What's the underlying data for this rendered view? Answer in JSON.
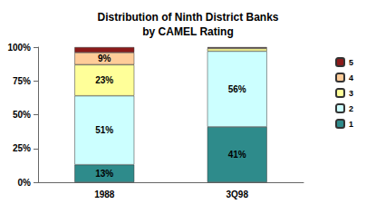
{
  "chart_data": {
    "type": "bar",
    "title": "Distribution of Ninth District Banks\nby CAMEL Rating",
    "categories": [
      "1988",
      "3Q98"
    ],
    "stacked": true,
    "data_labels": true,
    "grid": false,
    "legend": "right",
    "ylim": [
      0,
      100
    ],
    "yticks": [
      {
        "value": 0,
        "label": "0%"
      },
      {
        "value": 25,
        "label": "25%"
      },
      {
        "value": 50,
        "label": "50%"
      },
      {
        "value": 75,
        "label": "75%"
      },
      {
        "value": 100,
        "label": "100%"
      }
    ],
    "series": [
      {
        "name": "1",
        "color": "#2e8b8b",
        "values": [
          13,
          41
        ],
        "value_labels": [
          "13%",
          "41%"
        ]
      },
      {
        "name": "2",
        "color": "#ccffff",
        "values": [
          51,
          56
        ],
        "value_labels": [
          "51%",
          "56%"
        ]
      },
      {
        "name": "3",
        "color": "#ffff99",
        "values": [
          23,
          2
        ],
        "value_labels": [
          "23%",
          null
        ]
      },
      {
        "name": "4",
        "color": "#ffcc99",
        "values": [
          9,
          0.5
        ],
        "value_labels": [
          "9%",
          null
        ]
      },
      {
        "name": "5",
        "color": "#8b1a1a",
        "values": [
          4,
          0.5
        ]
      }
    ]
  }
}
